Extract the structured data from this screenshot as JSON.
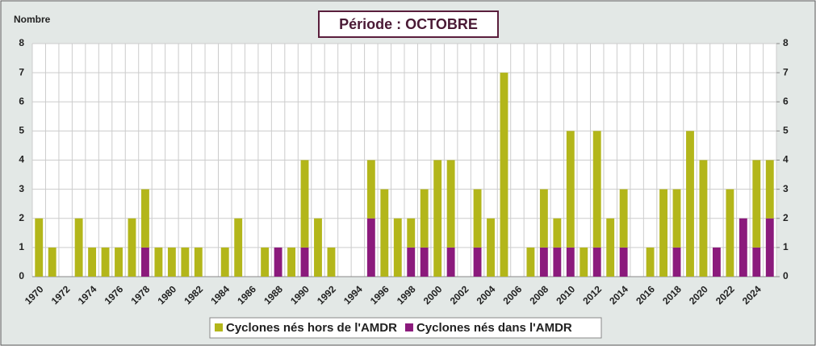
{
  "chart_data": {
    "type": "bar",
    "title": "Période : OCTOBRE",
    "y_label": "Nombre",
    "categories": [
      "1970",
      null,
      "1972",
      null,
      "1974",
      null,
      "1976",
      null,
      "1978",
      null,
      "1980",
      null,
      "1982",
      null,
      "1984",
      null,
      "1986",
      null,
      "1988",
      null,
      "1990",
      null,
      "1992",
      null,
      "1994",
      null,
      "1996",
      null,
      "1998",
      null,
      "2000",
      null,
      "2002",
      null,
      "2004",
      null,
      "2006",
      null,
      "2008",
      null,
      "2010",
      null,
      "2012",
      null,
      "2014",
      null,
      "2016",
      null,
      "2018",
      null,
      "2020",
      null,
      "2022",
      null,
      "2024",
      null
    ],
    "series": [
      {
        "name": "Cyclones nés hors de l'AMDR",
        "color": "#b3b61a",
        "values": [
          2,
          1,
          0,
          2,
          1,
          1,
          1,
          2,
          2,
          1,
          1,
          1,
          1,
          0,
          1,
          2,
          0,
          1,
          0,
          1,
          3,
          2,
          1,
          0,
          0,
          2,
          3,
          2,
          1,
          2,
          4,
          3,
          0,
          2,
          2,
          7,
          0,
          1,
          2,
          1,
          4,
          1,
          4,
          2,
          2,
          0,
          1,
          3,
          2,
          5,
          4,
          0,
          3,
          0,
          3,
          2
        ]
      },
      {
        "name": "Cyclones nés dans l'AMDR",
        "color": "#8b1a7c",
        "values": [
          0,
          0,
          0,
          0,
          0,
          0,
          0,
          0,
          1,
          0,
          0,
          0,
          0,
          0,
          0,
          0,
          0,
          0,
          1,
          0,
          1,
          0,
          0,
          0,
          0,
          2,
          0,
          0,
          1,
          1,
          0,
          1,
          0,
          1,
          0,
          0,
          0,
          0,
          1,
          1,
          1,
          0,
          1,
          0,
          1,
          0,
          0,
          0,
          1,
          0,
          0,
          1,
          0,
          2,
          1,
          2
        ]
      }
    ],
    "stacked": true,
    "ylim": [
      0,
      8
    ],
    "yticks": [
      0,
      1,
      2,
      3,
      4,
      5,
      6,
      7,
      8
    ],
    "y2lim": [
      0,
      8
    ],
    "y2ticks": [
      0,
      1,
      2,
      3,
      4,
      5,
      6,
      7,
      8
    ],
    "grid": true
  }
}
